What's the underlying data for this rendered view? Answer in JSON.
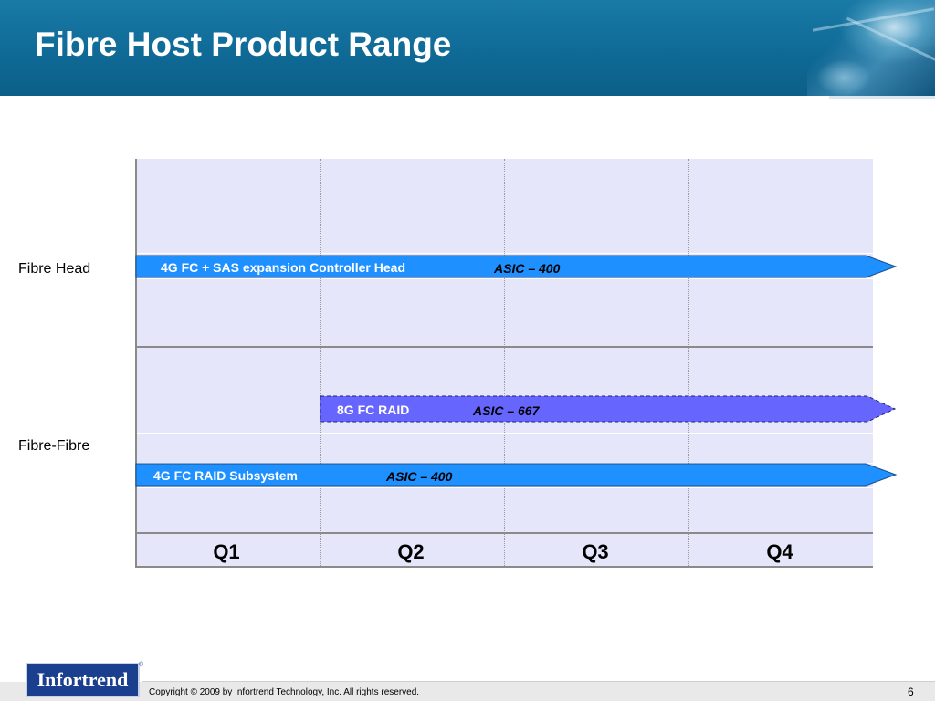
{
  "slide": {
    "title": "Fibre Host Product Range",
    "page_number": "6"
  },
  "rows": {
    "fibre_head_label": "Fibre Head",
    "fibre_fibre_label": "Fibre-Fibre"
  },
  "quarters": [
    "Q1",
    "Q2",
    "Q3",
    "Q4"
  ],
  "bars": [
    {
      "name": "4G FC + SAS expansion Controller Head",
      "asic": "ASIC – 400",
      "start": "Q1",
      "end": "Q4",
      "style": "solid",
      "color": "#1e90ff"
    },
    {
      "name": "8G FC  RAID",
      "asic": "ASIC – 667",
      "start": "Q2",
      "end": "Q4",
      "style": "dashed",
      "color": "#6666ff"
    },
    {
      "name": "4G FC  RAID Subsystem",
      "asic": "ASIC – 400",
      "start": "Q1",
      "end": "Q4",
      "style": "solid",
      "color": "#1e90ff"
    }
  ],
  "footer": {
    "logo_text": "Infortrend",
    "trademark": "®",
    "copyright": "Copyright © 2009 by Infortrend Technology, Inc. All rights reserved."
  }
}
